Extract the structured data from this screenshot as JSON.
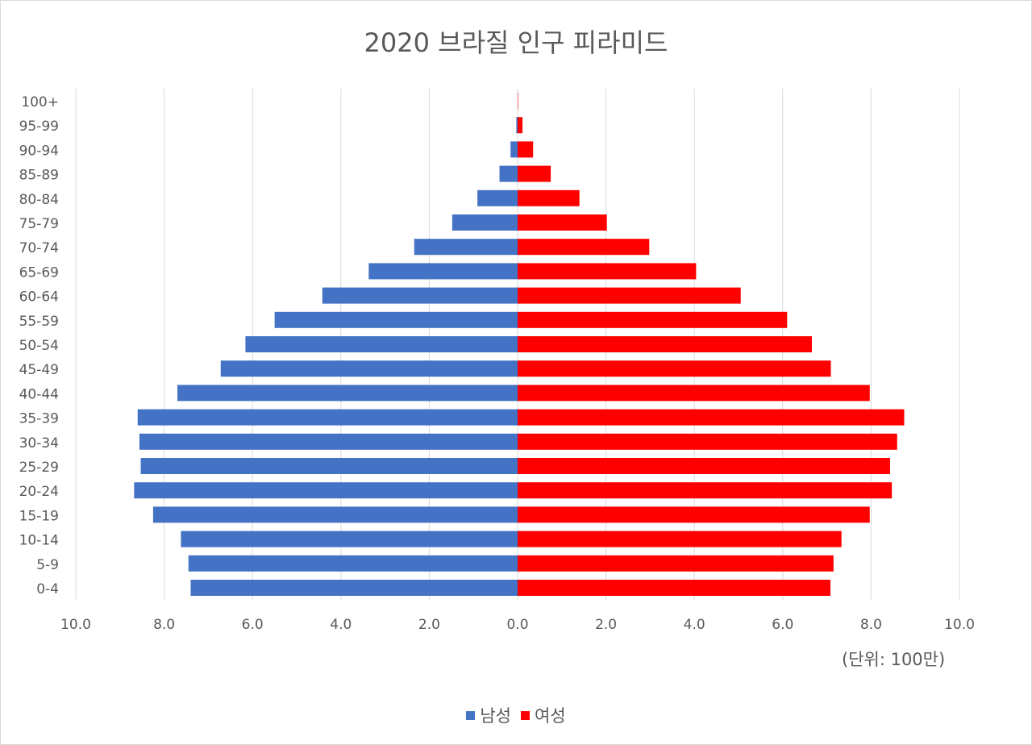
{
  "chart_data": {
    "type": "bar",
    "orientation": "horizontal",
    "layout": "population-pyramid",
    "title": "2020 브라질 인구 피라미드",
    "unit_note": "(단위: 100만)",
    "categories": [
      "0-4",
      "5-9",
      "10-14",
      "15-19",
      "20-24",
      "25-29",
      "30-34",
      "35-39",
      "40-44",
      "45-49",
      "50-54",
      "55-59",
      "60-64",
      "65-69",
      "70-74",
      "75-79",
      "80-84",
      "85-89",
      "90-94",
      "95-99",
      "100+"
    ],
    "series": [
      {
        "name": "남성",
        "color": "#4472c4",
        "side": "left",
        "values": [
          7.4,
          7.45,
          7.62,
          8.25,
          8.68,
          8.53,
          8.56,
          8.6,
          7.7,
          6.72,
          6.16,
          5.5,
          4.42,
          3.37,
          2.34,
          1.48,
          0.91,
          0.41,
          0.16,
          0.03,
          0.0
        ]
      },
      {
        "name": "여성",
        "color": "#ff0000",
        "side": "right",
        "values": [
          7.08,
          7.15,
          7.33,
          7.97,
          8.47,
          8.43,
          8.59,
          8.75,
          7.97,
          7.09,
          6.66,
          6.1,
          5.05,
          4.04,
          2.98,
          2.02,
          1.4,
          0.75,
          0.35,
          0.11,
          0.01
        ]
      }
    ],
    "x_ticks": [
      "10.0",
      "8.0",
      "6.0",
      "4.0",
      "2.0",
      "0.0",
      "2.0",
      "4.0",
      "6.0",
      "8.0",
      "10.0"
    ],
    "xlim": [
      -10,
      10
    ],
    "grid": true,
    "legend_position": "bottom"
  }
}
